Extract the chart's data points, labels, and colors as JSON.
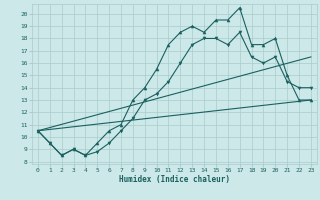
{
  "xlabel": "Humidex (Indice chaleur)",
  "bg_color": "#cce8e8",
  "grid_color": "#aacccc",
  "line_color": "#1a6060",
  "xlim": [
    -0.5,
    23.5
  ],
  "ylim": [
    7.8,
    20.8
  ],
  "xticks": [
    0,
    1,
    2,
    3,
    4,
    5,
    6,
    7,
    8,
    9,
    10,
    11,
    12,
    13,
    14,
    15,
    16,
    17,
    18,
    19,
    20,
    21,
    22,
    23
  ],
  "yticks": [
    8,
    9,
    10,
    11,
    12,
    13,
    14,
    15,
    16,
    17,
    18,
    19,
    20
  ],
  "series1_x": [
    0,
    1,
    2,
    3,
    4,
    5,
    6,
    7,
    8,
    9,
    10,
    11,
    12,
    13,
    14,
    15,
    16,
    17,
    18,
    19,
    20,
    21,
    22,
    23
  ],
  "series1_y": [
    10.5,
    9.5,
    8.5,
    9.0,
    8.5,
    8.8,
    9.5,
    10.5,
    11.5,
    13.0,
    13.5,
    14.5,
    16.0,
    17.5,
    18.0,
    18.0,
    17.5,
    18.5,
    16.5,
    16.0,
    16.5,
    14.5,
    14.0,
    14.0
  ],
  "series2_x": [
    0,
    1,
    2,
    3,
    4,
    5,
    6,
    7,
    8,
    9,
    10,
    11,
    12,
    13,
    14,
    15,
    16,
    17,
    18,
    19,
    20,
    21,
    22,
    23
  ],
  "series2_y": [
    10.5,
    9.5,
    8.5,
    9.0,
    8.5,
    9.5,
    10.5,
    11.0,
    13.0,
    14.0,
    15.5,
    17.5,
    18.5,
    19.0,
    18.5,
    19.5,
    19.5,
    20.5,
    17.5,
    17.5,
    18.0,
    15.0,
    13.0,
    13.0
  ],
  "line3_x": [
    0,
    23
  ],
  "line3_y": [
    10.5,
    13.0
  ],
  "line4_x": [
    0,
    23
  ],
  "line4_y": [
    10.5,
    16.5
  ]
}
